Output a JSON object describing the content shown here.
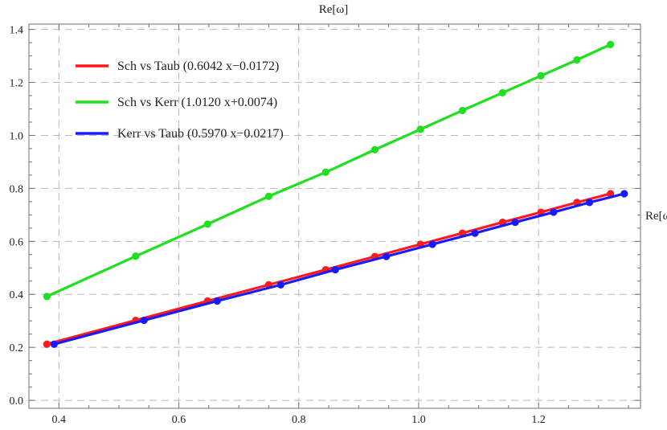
{
  "chart_data": {
    "type": "line",
    "title": "",
    "xlabel": "",
    "ylabel": "Re[ω]",
    "top_label": "Re[ω]",
    "xlim": [
      0.35,
      1.37
    ],
    "ylim": [
      -0.03,
      1.42
    ],
    "x_ticks": [
      0.4,
      0.6,
      0.8,
      1.0,
      1.2
    ],
    "x_tick_labels": [
      "0.4",
      "0.6",
      "0.8",
      "1.0",
      "1.2"
    ],
    "y_ticks": [
      0.0,
      0.2,
      0.4,
      0.6,
      0.8,
      1.0,
      1.2,
      1.4
    ],
    "y_tick_labels": [
      "0.0",
      "0.2",
      "0.4",
      "0.6",
      "0.8",
      "1.0",
      "1.2",
      "1.4"
    ],
    "grid": true,
    "legend_position": "top-left",
    "series": [
      {
        "name": "Sch vs Taub (0.6042 x−0.0172)",
        "color": "#ff1a1a",
        "x": [
          0.38,
          0.528,
          0.648,
          0.75,
          0.845,
          0.927,
          1.003,
          1.073,
          1.14,
          1.204,
          1.264,
          1.32
        ],
        "y": [
          0.212,
          0.302,
          0.375,
          0.436,
          0.493,
          0.543,
          0.589,
          0.631,
          0.672,
          0.71,
          0.747,
          0.78
        ]
      },
      {
        "name": "Sch vs Kerr (1.0120 x+0.0074)",
        "color": "#1ee01e",
        "x": [
          0.38,
          0.528,
          0.648,
          0.75,
          0.845,
          0.927,
          1.003,
          1.073,
          1.14,
          1.204,
          1.264,
          1.32
        ],
        "y": [
          0.392,
          0.544,
          0.665,
          0.77,
          0.861,
          0.946,
          1.023,
          1.094,
          1.161,
          1.225,
          1.285,
          1.343
        ]
      },
      {
        "name": "Kerr vs Taub (0.5970 x−0.0217)",
        "color": "#1a1aff",
        "x": [
          0.392,
          0.542,
          0.664,
          0.77,
          0.861,
          0.946,
          1.023,
          1.094,
          1.161,
          1.225,
          1.285,
          1.343
        ],
        "y": [
          0.212,
          0.302,
          0.375,
          0.436,
          0.493,
          0.543,
          0.589,
          0.631,
          0.672,
          0.71,
          0.747,
          0.78
        ]
      }
    ]
  }
}
